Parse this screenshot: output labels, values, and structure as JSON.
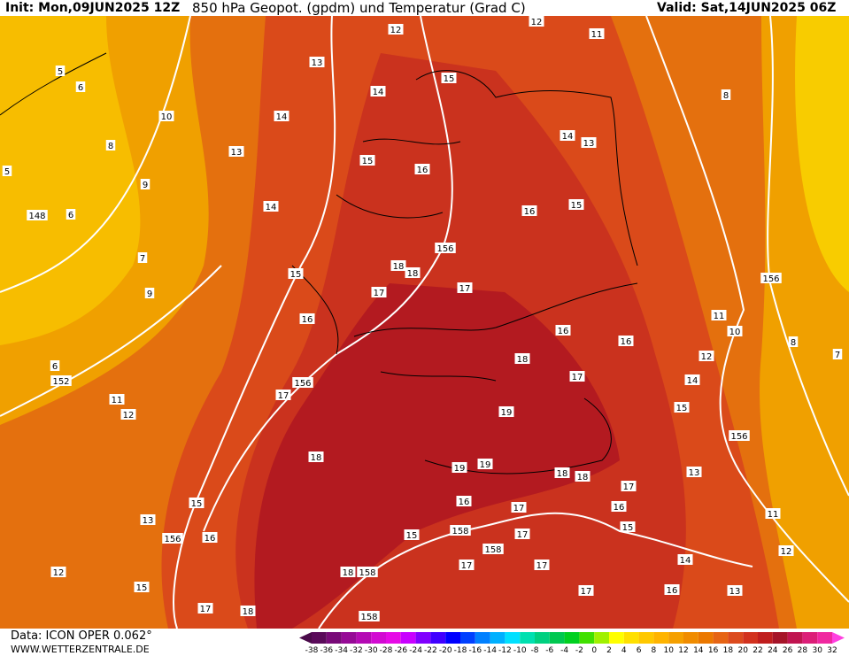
{
  "header": {
    "init": "Init: Mon,09JUN2025 12Z",
    "title": "850 hPa Geopot. (gpdm) und Temperatur (Grad C)",
    "valid": "Valid: Sat,14JUN2025 06Z"
  },
  "footer": {
    "source": "Data: ICON OPER 0.062°",
    "site": "WWW.WETTERZENTRALE.DE"
  },
  "map_labels": [
    12,
    12,
    11,
    5,
    6,
    13,
    15,
    14,
    8,
    10,
    14,
    8,
    13,
    14,
    13,
    15,
    16,
    5,
    9,
    14,
    15,
    16,
    148,
    6,
    156,
    7,
    18,
    18,
    15,
    9,
    17,
    17,
    156,
    11,
    16,
    10,
    16,
    16,
    8,
    7,
    12,
    6,
    18,
    17,
    14,
    152,
    156,
    17,
    11,
    15,
    12,
    19,
    156,
    18,
    19,
    19,
    13,
    18,
    18,
    17,
    16,
    15,
    17,
    16,
    13,
    11,
    156,
    16,
    15,
    158,
    15,
    17,
    158,
    12,
    17,
    17,
    14,
    12,
    18,
    158,
    15,
    17,
    16,
    13,
    17,
    18,
    158
  ],
  "legend": {
    "ticks": [
      -38,
      -36,
      -34,
      -32,
      -30,
      -28,
      -26,
      -24,
      -22,
      -20,
      -18,
      -16,
      -14,
      -12,
      -10,
      -8,
      -6,
      -4,
      -2,
      0,
      2,
      4,
      6,
      8,
      10,
      12,
      14,
      16,
      18,
      20,
      22,
      24,
      26,
      28,
      30,
      32
    ],
    "colors": [
      "#5a0a5a",
      "#780a78",
      "#960a96",
      "#b40ab4",
      "#d20ad2",
      "#e60ae6",
      "#c800ff",
      "#8000ff",
      "#4000ff",
      "#0000ff",
      "#0040ff",
      "#0080ff",
      "#00b0ff",
      "#00e0ff",
      "#00e0b0",
      "#00d080",
      "#00c850",
      "#00d020",
      "#40e000",
      "#a0f000",
      "#ffff00",
      "#ffe000",
      "#ffc800",
      "#ffb400",
      "#f5a000",
      "#f08c00",
      "#eb7800",
      "#e66414",
      "#dc4b1e",
      "#d2321e",
      "#c01e1e",
      "#a51428",
      "#c01450",
      "#dc1e78",
      "#f028a0"
    ],
    "under_color": "#4a0a4a",
    "over_color": "#ff40e0"
  }
}
